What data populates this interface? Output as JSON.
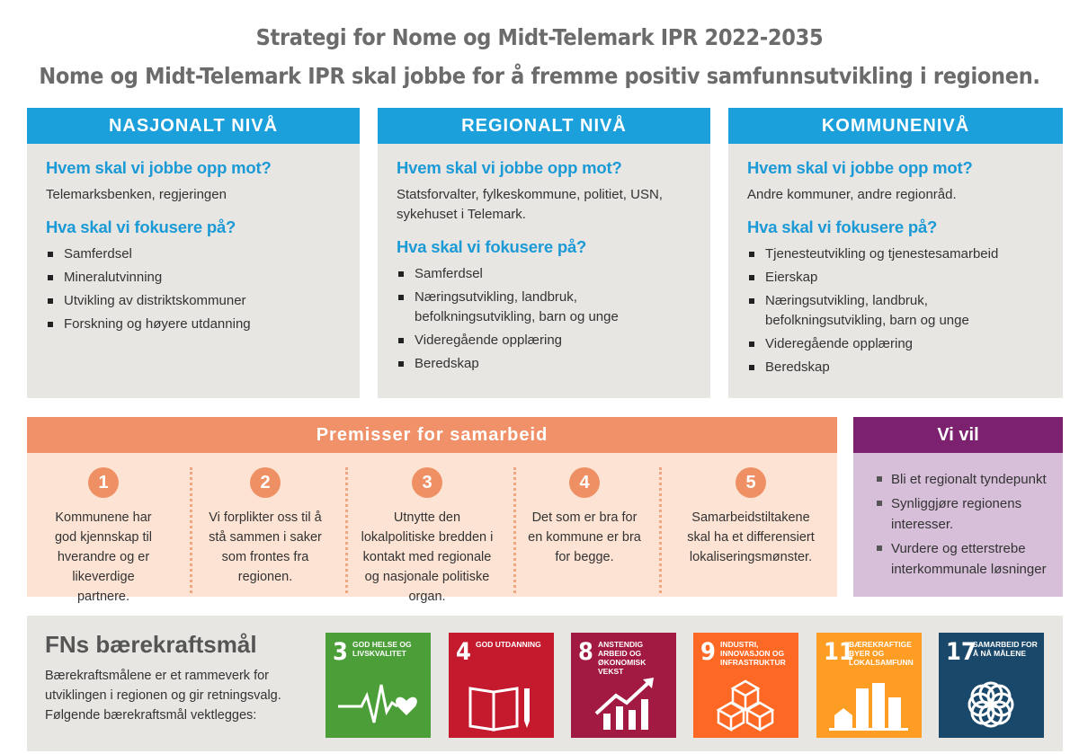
{
  "header": {
    "title": "Strategi for Nome og Midt-Telemark IPR 2022-2035",
    "subtitle": "Nome og Midt-Telemark IPR skal jobbe for å fremme positiv samfunnsutvikling i regionen."
  },
  "levels": [
    {
      "title": "NASJONALT NIVÅ",
      "q1": "Hvem skal vi jobbe opp mot?",
      "a1": "Telemarksbenken, regjeringen",
      "q2": "Hva skal vi fokusere på?",
      "items": [
        "Samferdsel",
        "Mineralutvinning",
        "Utvikling av distriktskommuner",
        "Forskning og høyere utdanning"
      ]
    },
    {
      "title": "REGIONALT NIVÅ",
      "q1": "Hvem skal vi jobbe opp mot?",
      "a1": "Statsforvalter, fylkeskommune, politiet, USN, sykehuset i Telemark.",
      "q2": "Hva skal vi fokusere på?",
      "items": [
        "Samferdsel",
        "Næringsutvikling, landbruk, befolkningsutvikling, barn og unge",
        "Videregående opplæring",
        "Beredskap"
      ]
    },
    {
      "title": "KOMMUNENIVÅ",
      "q1": "Hvem skal vi jobbe opp mot?",
      "a1": "Andre kommuner, andre regionråd.",
      "q2": "Hva skal vi fokusere på?",
      "items": [
        "Tjenesteutvikling og tjenestesamarbeid",
        "Eierskap",
        "Næringsutvikling, landbruk, befolkningsutvikling, barn og unge",
        "Videregående opplæring",
        "Beredskap"
      ]
    }
  ],
  "premisser": {
    "title": "Premisser for samarbeid",
    "items": [
      {
        "num": "1",
        "text": "Kommunene har god kjennskap til hverandre og er likeverdige partnere."
      },
      {
        "num": "2",
        "text": "Vi forplikter oss til å stå sammen i saker som frontes fra regionen."
      },
      {
        "num": "3",
        "text": "Utnytte den lokalpolitiske bredden i kontakt med regionale og nasjonale politiske organ."
      },
      {
        "num": "4",
        "text": "Det som er bra for en kommune er bra for begge."
      },
      {
        "num": "5",
        "text": "Samarbeidstiltakene skal ha et differensiert lokaliseringsmønster."
      }
    ]
  },
  "vivil": {
    "title": "Vi vil",
    "items": [
      "Bli et regionalt tyndepunkt",
      "Synliggjøre regionens interesser.",
      "Vurdere og etterstrebe interkommunale løsninger"
    ]
  },
  "fn": {
    "title": "FNs bærekraftsmål",
    "text": "Bærekraftsmålene er et rammeverk for utviklingen i regionen og gir retningsvalg. Følgende bærekraftsmål vektlegges:",
    "goals": [
      {
        "num": "3",
        "label": "GOD HELSE OG LIVSKVALITET",
        "color": "#4c9f38",
        "icon": "heartbeat-icon"
      },
      {
        "num": "4",
        "label": "GOD UTDANNING",
        "color": "#c5192d",
        "icon": "book-pencil-icon"
      },
      {
        "num": "8",
        "label": "ANSTENDIG ARBEID OG ØKONOMISK VEKST",
        "color": "#a21942",
        "icon": "growth-chart-icon"
      },
      {
        "num": "9",
        "label": "INDUSTRI, INNOVASJON OG INFRASTRUKTUR",
        "color": "#fd6925",
        "icon": "cubes-icon"
      },
      {
        "num": "11",
        "label": "BÆREKRAFTIGE BYER OG LOKALSAMFUNN",
        "color": "#fd9d24",
        "icon": "city-icon"
      },
      {
        "num": "17",
        "label": "SAMARBEID FOR Å NÅ MÅLENE",
        "color": "#19486a",
        "icon": "rings-icon"
      }
    ]
  }
}
